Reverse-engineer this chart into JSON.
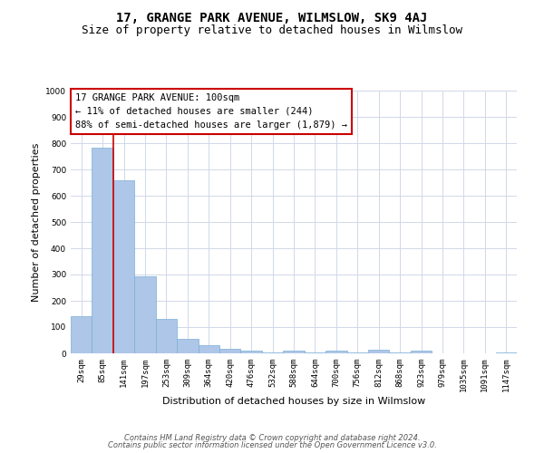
{
  "title": "17, GRANGE PARK AVENUE, WILMSLOW, SK9 4AJ",
  "subtitle": "Size of property relative to detached houses in Wilmslow",
  "xlabel": "Distribution of detached houses by size in Wilmslow",
  "ylabel": "Number of detached properties",
  "categories": [
    "29sqm",
    "85sqm",
    "141sqm",
    "197sqm",
    "253sqm",
    "309sqm",
    "364sqm",
    "420sqm",
    "476sqm",
    "532sqm",
    "588sqm",
    "644sqm",
    "700sqm",
    "756sqm",
    "812sqm",
    "868sqm",
    "923sqm",
    "979sqm",
    "1035sqm",
    "1091sqm",
    "1147sqm"
  ],
  "values": [
    140,
    783,
    660,
    293,
    132,
    55,
    30,
    17,
    10,
    3,
    10,
    3,
    10,
    3,
    13,
    3,
    10,
    0,
    0,
    0,
    3
  ],
  "bar_color": "#aec6e8",
  "bar_edge_color": "#7aafd4",
  "vline_color": "#cc0000",
  "vline_x": 1.5,
  "annotation_title": "17 GRANGE PARK AVENUE: 100sqm",
  "annotation_line1": "← 11% of detached houses are smaller (244)",
  "annotation_line2": "88% of semi-detached houses are larger (1,879) →",
  "annotation_box_color": "#ffffff",
  "annotation_box_edge_color": "#cc0000",
  "ylim": [
    0,
    1000
  ],
  "yticks": [
    0,
    100,
    200,
    300,
    400,
    500,
    600,
    700,
    800,
    900,
    1000
  ],
  "footer1": "Contains HM Land Registry data © Crown copyright and database right 2024.",
  "footer2": "Contains public sector information licensed under the Open Government Licence v3.0.",
  "background_color": "#ffffff",
  "grid_color": "#d0d8e8",
  "title_fontsize": 10,
  "subtitle_fontsize": 9,
  "axis_label_fontsize": 8,
  "tick_fontsize": 6.5,
  "annotation_fontsize": 7.5,
  "footer_fontsize": 6
}
